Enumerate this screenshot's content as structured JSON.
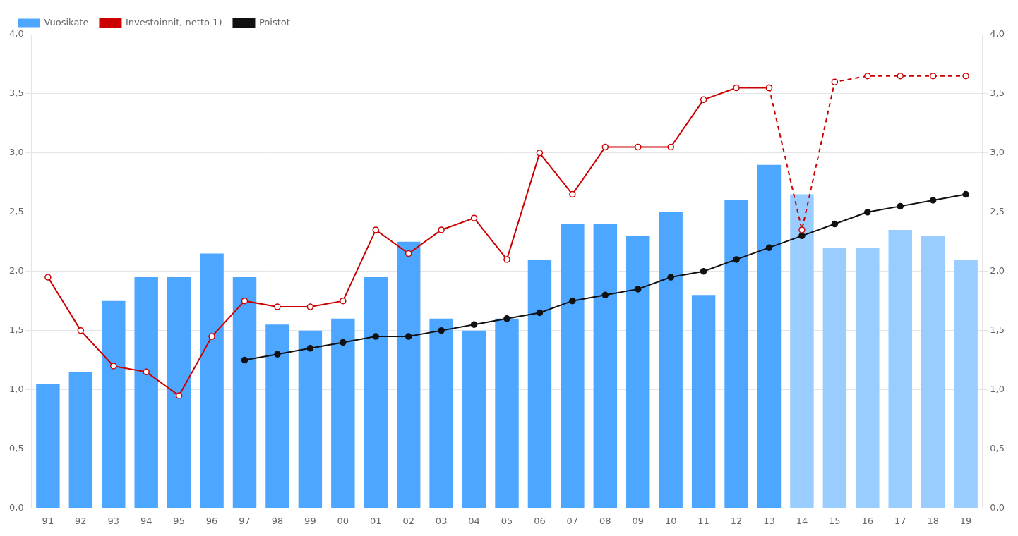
{
  "chart_data": {
    "type": "bar",
    "categories": [
      "91",
      "92",
      "93",
      "94",
      "95",
      "96",
      "97",
      "98",
      "99",
      "00",
      "01",
      "02",
      "03",
      "04",
      "05",
      "06",
      "07",
      "08",
      "09",
      "10",
      "11",
      "12",
      "13",
      "14",
      "15",
      "16",
      "17",
      "18",
      "19"
    ],
    "series": [
      {
        "name": "Vuosikate",
        "type": "bar",
        "colors": [
          "#4da6ff",
          "#4da6ff",
          "#4da6ff",
          "#4da6ff",
          "#4da6ff",
          "#4da6ff",
          "#4da6ff",
          "#4da6ff",
          "#4da6ff",
          "#4da6ff",
          "#4da6ff",
          "#4da6ff",
          "#4da6ff",
          "#4da6ff",
          "#4da6ff",
          "#4da6ff",
          "#4da6ff",
          "#4da6ff",
          "#4da6ff",
          "#4da6ff",
          "#4da6ff",
          "#4da6ff",
          "#4da6ff",
          "#99ccff",
          "#99ccff",
          "#99ccff",
          "#99ccff",
          "#99ccff",
          "#99ccff"
        ],
        "values": [
          1.05,
          1.15,
          1.75,
          1.95,
          1.95,
          2.15,
          1.95,
          1.55,
          1.5,
          1.6,
          1.95,
          2.25,
          1.6,
          1.5,
          1.6,
          2.1,
          2.4,
          2.4,
          2.3,
          2.5,
          1.8,
          2.6,
          2.9,
          2.65,
          2.2,
          2.2,
          2.35,
          2.3,
          2.1
        ]
      },
      {
        "name": "Investoinnit, netto 1)",
        "type": "line",
        "color": "#cc0000",
        "marker": "open_circle",
        "line_style": "solid",
        "values": [
          1.95,
          1.5,
          1.2,
          1.15,
          0.95,
          1.45,
          1.75,
          1.7,
          1.7,
          1.75,
          2.35,
          2.15,
          2.35,
          2.45,
          2.1,
          3.0,
          2.65,
          3.05,
          3.05,
          3.05,
          3.45,
          3.55,
          3.55,
          null,
          null,
          null,
          null,
          null,
          null
        ]
      },
      {
        "name": "Investoinnit, netto 1)",
        "type": "line",
        "color": "#cc0000",
        "marker": "open_circle",
        "line_style": "dashed",
        "values": [
          null,
          null,
          null,
          null,
          null,
          null,
          null,
          null,
          null,
          null,
          null,
          null,
          null,
          null,
          null,
          null,
          null,
          null,
          null,
          null,
          null,
          null,
          3.55,
          2.35,
          3.6,
          3.65,
          3.65,
          3.65,
          3.65
        ]
      },
      {
        "name": "Poistot",
        "type": "line",
        "color": "#111111",
        "marker": "circle",
        "line_style": "solid",
        "values": [
          null,
          null,
          null,
          null,
          null,
          null,
          1.25,
          1.3,
          1.35,
          1.4,
          1.45,
          1.45,
          1.5,
          1.55,
          1.6,
          1.65,
          1.75,
          1.8,
          1.85,
          1.95,
          2.0,
          2.1,
          2.2,
          2.3,
          2.4,
          2.5,
          2.55,
          2.6,
          2.65
        ]
      }
    ],
    "ylim": [
      0,
      4.0
    ],
    "yticks": [
      {
        "value": 0.0,
        "label": "0,0"
      },
      {
        "value": 0.5,
        "label": "0,5"
      },
      {
        "value": 1.0,
        "label": "1,0"
      },
      {
        "value": 1.5,
        "label": "1,5"
      },
      {
        "value": 2.0,
        "label": "2,0"
      },
      {
        "value": 2.5,
        "label": "2,5"
      },
      {
        "value": 3.0,
        "label": "3,0"
      },
      {
        "value": 3.5,
        "label": "3,5"
      },
      {
        "value": 4.0,
        "label": "4,0"
      }
    ],
    "y2lim": [
      0,
      4.0
    ],
    "y2ticks": [
      {
        "value": 0.0,
        "label": "0,0"
      },
      {
        "value": 0.5,
        "label": "0,5"
      },
      {
        "value": 1.0,
        "label": "1,0"
      },
      {
        "value": 1.5,
        "label": "1,5"
      },
      {
        "value": 2.0,
        "label": "2,0"
      },
      {
        "value": 2.5,
        "label": "2,5"
      },
      {
        "value": 3.0,
        "label": "3,0"
      },
      {
        "value": 3.5,
        "label": "3,5"
      },
      {
        "value": 4.0,
        "label": "4,0"
      }
    ],
    "grid": true,
    "legend": "upper left"
  }
}
